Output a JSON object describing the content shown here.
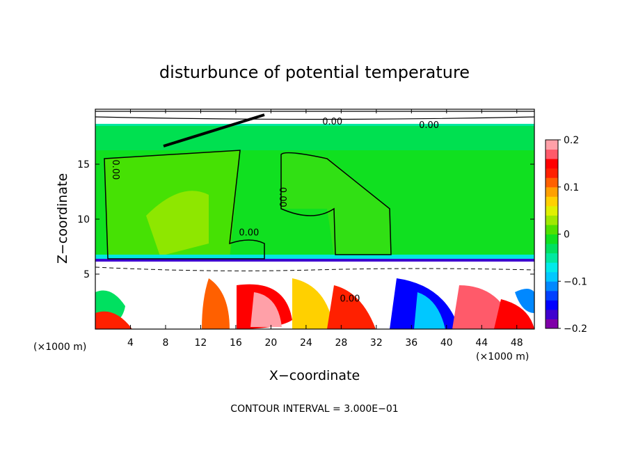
{
  "chart_data": {
    "type": "heatmap",
    "title": "disturbunce of potential temperature",
    "xlabel": "X−coordinate",
    "ylabel": "Z−coordinate",
    "x_unit_left": "(×1000 m)",
    "x_unit_right": "(×1000 m)",
    "xlim": [
      0,
      50
    ],
    "ylim": [
      0,
      20
    ],
    "x_ticks": [
      4,
      8,
      12,
      16,
      20,
      24,
      28,
      32,
      36,
      40,
      44,
      48
    ],
    "y_ticks": [
      5,
      10,
      15
    ],
    "footer": "CONTOUR INTERVAL = 3.000E−01",
    "colorbar": {
      "range": [
        -0.2,
        0.2
      ],
      "tick_values": [
        0.2,
        0.1,
        0,
        -0.1,
        -0.2
      ],
      "tick_labels": [
        "0.2",
        "0.1",
        "0",
        "−0.1",
        "−0.2"
      ],
      "colors": [
        "#7f00a8",
        "#3f00cf",
        "#0000ff",
        "#0040ff",
        "#0088ff",
        "#00c8ff",
        "#00eaea",
        "#00e8a0",
        "#00e060",
        "#10e020",
        "#50e000",
        "#a0e800",
        "#e0f000",
        "#ffd000",
        "#ffa000",
        "#ff6000",
        "#ff2000",
        "#ff0000",
        "#ff5a6a",
        "#ffa0a8"
      ]
    },
    "contour_labels": [
      {
        "text": "0.00",
        "x": 2.0,
        "y": 14.5,
        "rotate": 90
      },
      {
        "text": "0.00",
        "x": 17.5,
        "y": 8.5,
        "rotate": 0
      },
      {
        "text": "0.00",
        "x": 21.0,
        "y": 12.0,
        "rotate": 90
      },
      {
        "text": "0.00",
        "x": 29.0,
        "y": 2.5,
        "rotate": 0
      },
      {
        "text": "0.00",
        "x": 27.0,
        "y": 18.6,
        "rotate": 0
      },
      {
        "text": "0.00",
        "x": 38.0,
        "y": 18.3,
        "rotate": 0
      }
    ]
  }
}
